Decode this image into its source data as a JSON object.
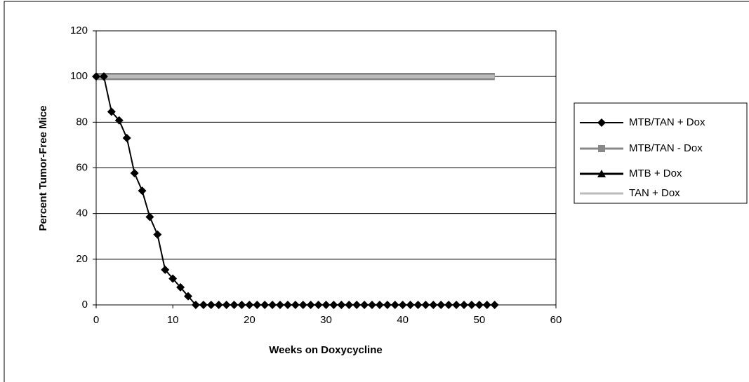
{
  "chart_data": {
    "type": "line",
    "x_label": "Weeks on Doxycycline",
    "y_label": "Percent Tumor-Free Mice",
    "xlim": [
      0,
      60
    ],
    "xticks": [
      0,
      10,
      20,
      30,
      40,
      50,
      60
    ],
    "ylim": [
      0,
      120
    ],
    "yticks": [
      0,
      20,
      40,
      60,
      80,
      100,
      120
    ],
    "grid": true,
    "legend": "right",
    "series": [
      {
        "name": "MTB/TAN + Dox",
        "color": "#000000",
        "marker": "diamond",
        "x": [
          0,
          1,
          2,
          3,
          4,
          5,
          6,
          7,
          8,
          9,
          10,
          11,
          12,
          13,
          14,
          15,
          16,
          17,
          18,
          19,
          20,
          21,
          22,
          23,
          24,
          25,
          26,
          27,
          28,
          29,
          30,
          31,
          32,
          33,
          34,
          35,
          36,
          37,
          38,
          39,
          40,
          41,
          42,
          43,
          44,
          45,
          46,
          47,
          48,
          49,
          50,
          51,
          52
        ],
        "values": [
          100,
          100,
          84.6,
          80.8,
          73.1,
          57.7,
          50,
          38.5,
          30.8,
          15.4,
          11.5,
          7.7,
          3.8,
          0,
          0,
          0,
          0,
          0,
          0,
          0,
          0,
          0,
          0,
          0,
          0,
          0,
          0,
          0,
          0,
          0,
          0,
          0,
          0,
          0,
          0,
          0,
          0,
          0,
          0,
          0,
          0,
          0,
          0,
          0,
          0,
          0,
          0,
          0,
          0,
          0,
          0,
          0,
          0
        ]
      },
      {
        "name": "MTB/TAN - Dox",
        "color": "#888888",
        "marker": "square",
        "x": [
          0,
          52
        ],
        "values": [
          100,
          100
        ]
      },
      {
        "name": "MTB + Dox",
        "color": "#000000",
        "marker": "triangle",
        "x": [
          0,
          52
        ],
        "values": [
          100,
          100
        ]
      },
      {
        "name": "TAN + Dox",
        "color": "#bbbbbb",
        "marker": "none",
        "x": [
          0,
          52
        ],
        "values": [
          100,
          100
        ]
      }
    ]
  }
}
